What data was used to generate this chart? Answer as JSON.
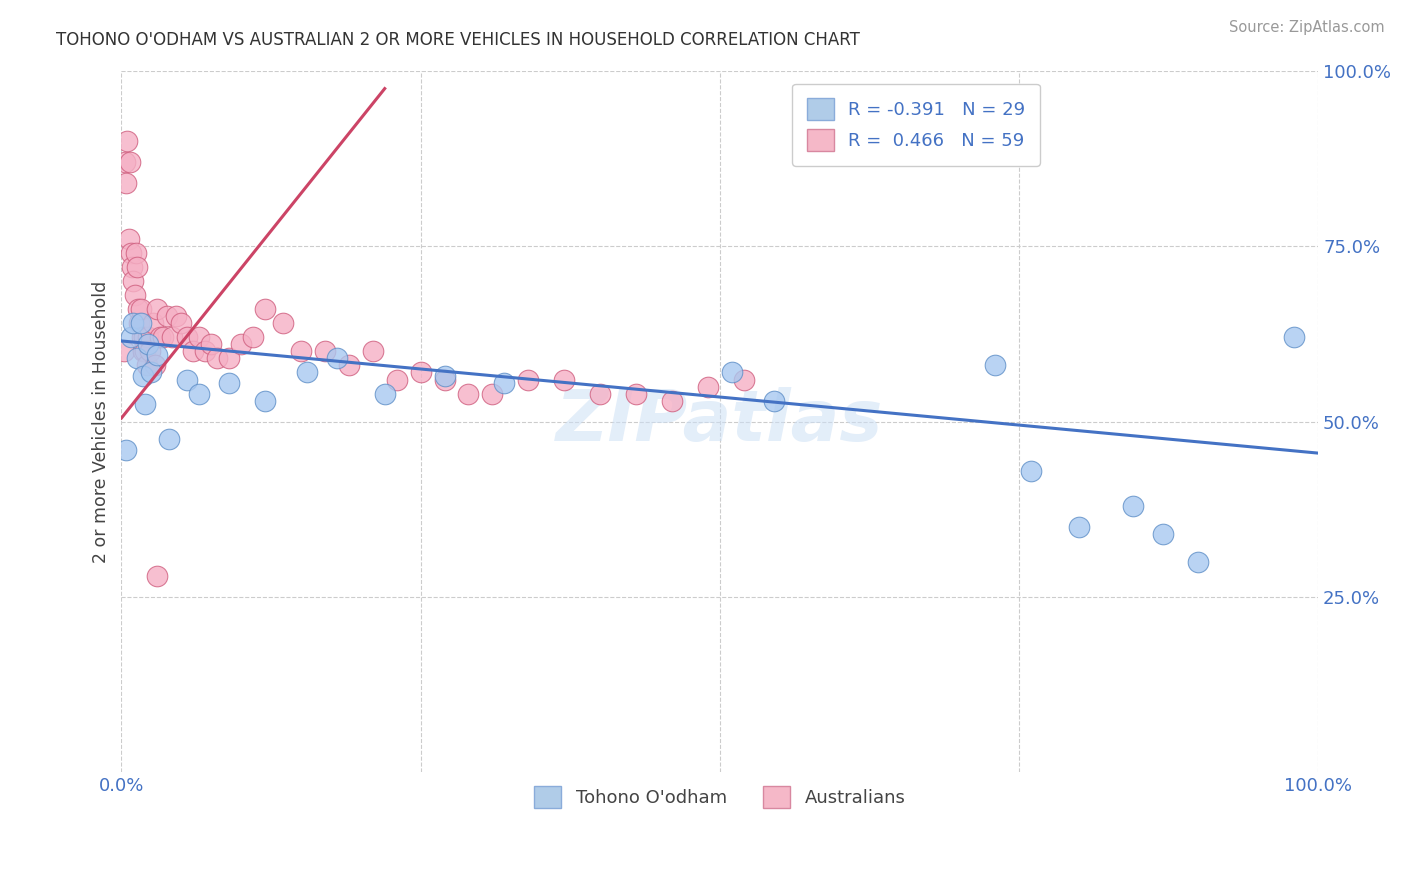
{
  "title": "TOHONO O'ODHAM VS AUSTRALIAN 2 OR MORE VEHICLES IN HOUSEHOLD CORRELATION CHART",
  "source": "Source: ZipAtlas.com",
  "ylabel": "2 or more Vehicles in Household",
  "xlim": [
    0,
    1
  ],
  "ylim": [
    0,
    1
  ],
  "background_color": "#ffffff",
  "grid_color": "#cccccc",
  "watermark": "ZIPatlas",
  "blue_scatter_color": "#a8c8f0",
  "pink_scatter_color": "#f5b0c5",
  "blue_edge_color": "#6090c8",
  "pink_edge_color": "#d06080",
  "blue_line_color": "#4472c4",
  "pink_line_color": "#cc4466",
  "legend_blue_label": "R = -0.391   N = 29",
  "legend_pink_label": "R =  0.466   N = 59",
  "legend_blue_face": "#b0cce8",
  "legend_pink_face": "#f5b8c8",
  "tohono_x": [
    0.004,
    0.008,
    0.01,
    0.013,
    0.016,
    0.018,
    0.02,
    0.022,
    0.025,
    0.03,
    0.04,
    0.055,
    0.065,
    0.09,
    0.12,
    0.155,
    0.18,
    0.22,
    0.27,
    0.32,
    0.51,
    0.545,
    0.73,
    0.76,
    0.8,
    0.845,
    0.87,
    0.9,
    0.98
  ],
  "tohono_y": [
    0.46,
    0.62,
    0.64,
    0.59,
    0.64,
    0.565,
    0.525,
    0.61,
    0.57,
    0.595,
    0.475,
    0.56,
    0.54,
    0.555,
    0.53,
    0.57,
    0.59,
    0.54,
    0.565,
    0.555,
    0.57,
    0.53,
    0.58,
    0.43,
    0.35,
    0.38,
    0.34,
    0.3,
    0.62
  ],
  "australian_x": [
    0.002,
    0.003,
    0.004,
    0.005,
    0.006,
    0.007,
    0.008,
    0.009,
    0.01,
    0.011,
    0.012,
    0.013,
    0.014,
    0.015,
    0.016,
    0.017,
    0.018,
    0.019,
    0.02,
    0.021,
    0.022,
    0.024,
    0.026,
    0.028,
    0.03,
    0.032,
    0.035,
    0.038,
    0.042,
    0.046,
    0.05,
    0.055,
    0.06,
    0.065,
    0.07,
    0.075,
    0.08,
    0.09,
    0.1,
    0.11,
    0.12,
    0.135,
    0.15,
    0.17,
    0.19,
    0.21,
    0.23,
    0.25,
    0.27,
    0.29,
    0.31,
    0.34,
    0.37,
    0.4,
    0.43,
    0.46,
    0.49,
    0.52,
    0.03
  ],
  "australian_y": [
    0.6,
    0.87,
    0.84,
    0.9,
    0.76,
    0.87,
    0.74,
    0.72,
    0.7,
    0.68,
    0.74,
    0.72,
    0.66,
    0.64,
    0.66,
    0.62,
    0.6,
    0.62,
    0.6,
    0.58,
    0.62,
    0.6,
    0.64,
    0.58,
    0.66,
    0.62,
    0.62,
    0.65,
    0.62,
    0.65,
    0.64,
    0.62,
    0.6,
    0.62,
    0.6,
    0.61,
    0.59,
    0.59,
    0.61,
    0.62,
    0.66,
    0.64,
    0.6,
    0.6,
    0.58,
    0.6,
    0.56,
    0.57,
    0.56,
    0.54,
    0.54,
    0.56,
    0.56,
    0.54,
    0.54,
    0.53,
    0.55,
    0.56,
    0.28
  ],
  "blue_trend_start_x": 0.0,
  "blue_trend_end_x": 1.0,
  "blue_trend_start_y": 0.615,
  "blue_trend_end_y": 0.455,
  "pink_trend_start_x": 0.0,
  "pink_trend_end_x": 0.22,
  "pink_trend_start_y": 0.505,
  "pink_trend_end_y": 0.975
}
